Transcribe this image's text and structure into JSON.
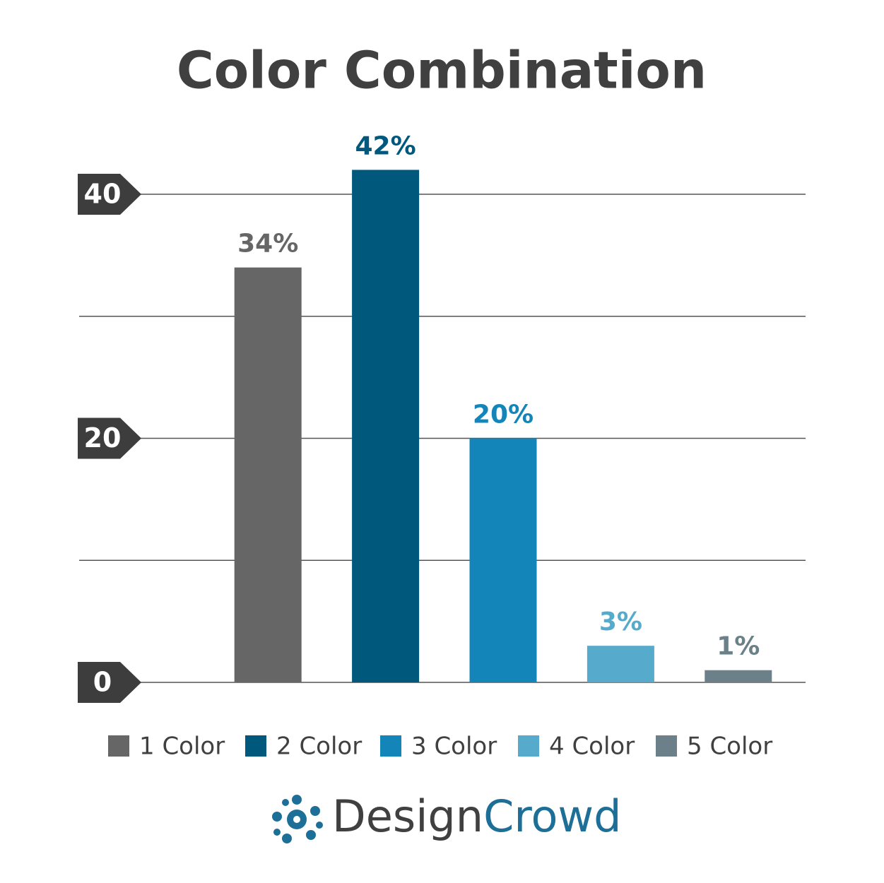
{
  "chart_data": {
    "type": "bar",
    "title": "Color Combination",
    "categories": [
      "1 Color",
      "2 Color",
      "3 Color",
      "4 Color",
      "5 Color"
    ],
    "values": [
      34,
      42,
      20,
      3,
      1
    ],
    "value_labels": [
      "34%",
      "42%",
      "20%",
      "3%",
      "1%"
    ],
    "colors": [
      "#666666",
      "#00587c",
      "#1385b8",
      "#56aacb",
      "#6b8089"
    ],
    "label_colors": [
      "#666666",
      "#00587c",
      "#1385b8",
      "#56aacb",
      "#6b8089"
    ],
    "ylim": [
      0,
      45
    ],
    "yticks": [
      0,
      20,
      40
    ],
    "gridlines": [
      0,
      10,
      20,
      30,
      40
    ],
    "grid": true,
    "legend": "bottom"
  },
  "logo": {
    "first": "Design",
    "second": "Crowd"
  }
}
